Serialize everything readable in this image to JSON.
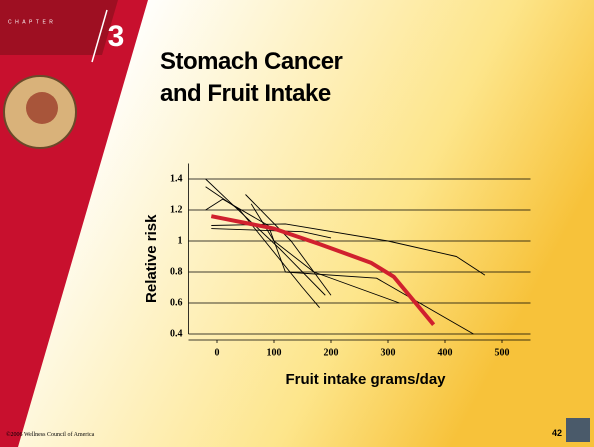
{
  "slide": {
    "chapter_label": "CHAPTER",
    "chapter_number": "3",
    "footer": "©2006 Wellness Council of America",
    "page_number": "42"
  },
  "chart_data": {
    "type": "line",
    "title": "Stomach Cancer and Fruit Intake",
    "x_label": "Fruit intake grams/day",
    "y_label": "Relative risk",
    "xlim": [
      -50,
      550
    ],
    "xticks": [
      0,
      100,
      200,
      300,
      400,
      500
    ],
    "ylim": [
      0.4,
      1.5
    ],
    "yticks": [
      0.4,
      0.6,
      0.8,
      1,
      1.2,
      1.4
    ],
    "grid": true,
    "series": [
      {
        "color": "#000000",
        "x": [
          -20,
          20,
          110,
          190
        ],
        "values": [
          1.4,
          1.26,
          0.95,
          0.65
        ]
      },
      {
        "color": "#000000",
        "x": [
          -20,
          40,
          150,
          180
        ],
        "values": [
          1.35,
          1.2,
          0.7,
          0.57
        ]
      },
      {
        "color": "#000000",
        "x": [
          -20,
          10,
          90,
          120,
          280,
          450
        ],
        "values": [
          1.2,
          1.27,
          1.1,
          0.8,
          0.76,
          0.4
        ]
      },
      {
        "color": "#000000",
        "x": [
          -10,
          120,
          300,
          420,
          470
        ],
        "values": [
          1.1,
          1.11,
          1.0,
          0.9,
          0.78
        ]
      },
      {
        "color": "#000000",
        "x": [
          -10,
          150,
          200
        ],
        "values": [
          1.08,
          1.06,
          1.02
        ]
      },
      {
        "color": "#000000",
        "x": [
          50,
          130,
          170,
          320
        ],
        "values": [
          1.3,
          1.0,
          0.8,
          0.6
        ]
      },
      {
        "color": "#000000",
        "x": [
          60,
          100,
          170,
          200
        ],
        "values": [
          1.24,
          1.0,
          0.8,
          0.65
        ]
      },
      {
        "color": "#d0202e",
        "x": [
          -10,
          100,
          180,
          270,
          310,
          380
        ],
        "values": [
          1.16,
          1.08,
          0.98,
          0.86,
          0.77,
          0.46
        ],
        "width": 4
      }
    ]
  }
}
